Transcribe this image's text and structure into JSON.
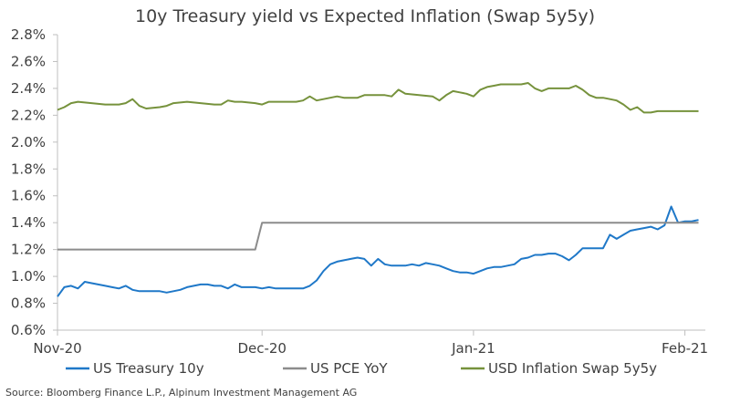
{
  "chart_data": {
    "type": "line",
    "title": "10y Treasury yield vs Expected Inflation (Swap 5y5y)",
    "source": "Source: Bloomberg Finance L.P., Alpinum Investment Management AG",
    "xlabel": "",
    "ylabel": "",
    "ylim": [
      0.6,
      2.8
    ],
    "yticks": [
      "0.6%",
      "0.8%",
      "1.0%",
      "1.2%",
      "1.4%",
      "1.6%",
      "1.8%",
      "2.0%",
      "2.2%",
      "2.4%",
      "2.6%",
      "2.8%"
    ],
    "xlim": [
      "2020-11-01",
      "2021-02-04"
    ],
    "xticks": [
      {
        "label": "Nov-20",
        "date": "2020-11-01"
      },
      {
        "label": "Dec-20",
        "date": "2020-12-01"
      },
      {
        "label": "Jan-21",
        "date": "2021-01-01"
      },
      {
        "label": "Feb-21",
        "date": "2021-02-01"
      }
    ],
    "grid": false,
    "legend_position": "bottom",
    "series": [
      {
        "name": "US Treasury 10y",
        "color": "#1f78c8",
        "points": [
          [
            "2020-11-01",
            0.85
          ],
          [
            "2020-11-02",
            0.92
          ],
          [
            "2020-11-03",
            0.93
          ],
          [
            "2020-11-04",
            0.91
          ],
          [
            "2020-11-05",
            0.96
          ],
          [
            "2020-11-06",
            0.95
          ],
          [
            "2020-11-08",
            0.93
          ],
          [
            "2020-11-09",
            0.92
          ],
          [
            "2020-11-10",
            0.91
          ],
          [
            "2020-11-11",
            0.93
          ],
          [
            "2020-11-12",
            0.9
          ],
          [
            "2020-11-13",
            0.89
          ],
          [
            "2020-11-15",
            0.89
          ],
          [
            "2020-11-16",
            0.89
          ],
          [
            "2020-11-17",
            0.88
          ],
          [
            "2020-11-18",
            0.89
          ],
          [
            "2020-11-19",
            0.9
          ],
          [
            "2020-11-20",
            0.92
          ],
          [
            "2020-11-22",
            0.94
          ],
          [
            "2020-11-23",
            0.94
          ],
          [
            "2020-11-24",
            0.93
          ],
          [
            "2020-11-25",
            0.93
          ],
          [
            "2020-11-26",
            0.91
          ],
          [
            "2020-11-27",
            0.94
          ],
          [
            "2020-11-28",
            0.92
          ],
          [
            "2020-11-29",
            0.92
          ],
          [
            "2020-11-30",
            0.92
          ],
          [
            "2020-12-01",
            0.91
          ],
          [
            "2020-12-02",
            0.92
          ],
          [
            "2020-12-03",
            0.91
          ],
          [
            "2020-12-04",
            0.91
          ],
          [
            "2020-12-05",
            0.91
          ],
          [
            "2020-12-06",
            0.91
          ],
          [
            "2020-12-07",
            0.91
          ],
          [
            "2020-12-08",
            0.93
          ],
          [
            "2020-12-09",
            0.97
          ],
          [
            "2020-12-10",
            1.04
          ],
          [
            "2020-12-11",
            1.09
          ],
          [
            "2020-12-12",
            1.11
          ],
          [
            "2020-12-13",
            1.12
          ],
          [
            "2020-12-14",
            1.13
          ],
          [
            "2020-12-15",
            1.14
          ],
          [
            "2020-12-16",
            1.13
          ],
          [
            "2020-12-17",
            1.08
          ],
          [
            "2020-12-18",
            1.13
          ],
          [
            "2020-12-19",
            1.09
          ],
          [
            "2020-12-20",
            1.08
          ],
          [
            "2020-12-21",
            1.08
          ],
          [
            "2020-12-22",
            1.08
          ],
          [
            "2020-12-23",
            1.09
          ],
          [
            "2020-12-24",
            1.08
          ],
          [
            "2020-12-25",
            1.1
          ],
          [
            "2020-12-26",
            1.09
          ],
          [
            "2020-12-27",
            1.08
          ],
          [
            "2020-12-28",
            1.06
          ],
          [
            "2020-12-29",
            1.04
          ],
          [
            "2020-12-30",
            1.03
          ],
          [
            "2020-12-31",
            1.03
          ],
          [
            "2021-01-01",
            1.02
          ],
          [
            "2021-01-02",
            1.04
          ],
          [
            "2021-01-03",
            1.06
          ],
          [
            "2021-01-04",
            1.07
          ],
          [
            "2021-01-05",
            1.07
          ],
          [
            "2021-01-06",
            1.08
          ],
          [
            "2021-01-07",
            1.09
          ],
          [
            "2021-01-08",
            1.13
          ],
          [
            "2021-01-09",
            1.14
          ],
          [
            "2021-01-10",
            1.16
          ],
          [
            "2021-01-11",
            1.16
          ],
          [
            "2021-01-12",
            1.17
          ],
          [
            "2021-01-13",
            1.17
          ],
          [
            "2021-01-14",
            1.15
          ],
          [
            "2021-01-15",
            1.12
          ],
          [
            "2021-01-16",
            1.16
          ],
          [
            "2021-01-17",
            1.21
          ],
          [
            "2021-01-18",
            1.21
          ],
          [
            "2021-01-19",
            1.21
          ],
          [
            "2021-01-20",
            1.21
          ],
          [
            "2021-01-21",
            1.31
          ],
          [
            "2021-01-22",
            1.28
          ],
          [
            "2021-01-23",
            1.31
          ],
          [
            "2021-01-24",
            1.34
          ],
          [
            "2021-01-25",
            1.35
          ],
          [
            "2021-01-26",
            1.36
          ],
          [
            "2021-01-27",
            1.37
          ],
          [
            "2021-01-28",
            1.35
          ],
          [
            "2021-01-29",
            1.38
          ],
          [
            "2021-01-30",
            1.52
          ],
          [
            "2021-01-31",
            1.4
          ],
          [
            "2021-02-01",
            1.41
          ],
          [
            "2021-02-02",
            1.41
          ],
          [
            "2021-02-03",
            1.42
          ]
        ]
      },
      {
        "name": "US PCE YoY",
        "color": "#8c8c8c",
        "points": [
          [
            "2020-11-01",
            1.2
          ],
          [
            "2020-11-30",
            1.2
          ],
          [
            "2020-12-01",
            1.4
          ],
          [
            "2021-02-03",
            1.4
          ]
        ]
      },
      {
        "name": "USD Inflation Swap 5y5y",
        "color": "#76923c",
        "points": [
          [
            "2020-11-01",
            2.24
          ],
          [
            "2020-11-02",
            2.26
          ],
          [
            "2020-11-03",
            2.29
          ],
          [
            "2020-11-04",
            2.3
          ],
          [
            "2020-11-06",
            2.29
          ],
          [
            "2020-11-08",
            2.28
          ],
          [
            "2020-11-10",
            2.28
          ],
          [
            "2020-11-11",
            2.29
          ],
          [
            "2020-11-12",
            2.32
          ],
          [
            "2020-11-13",
            2.27
          ],
          [
            "2020-11-14",
            2.25
          ],
          [
            "2020-11-16",
            2.26
          ],
          [
            "2020-11-17",
            2.27
          ],
          [
            "2020-11-18",
            2.29
          ],
          [
            "2020-11-20",
            2.3
          ],
          [
            "2020-11-22",
            2.29
          ],
          [
            "2020-11-24",
            2.28
          ],
          [
            "2020-11-25",
            2.28
          ],
          [
            "2020-11-26",
            2.31
          ],
          [
            "2020-11-27",
            2.3
          ],
          [
            "2020-11-28",
            2.3
          ],
          [
            "2020-11-30",
            2.29
          ],
          [
            "2020-12-01",
            2.28
          ],
          [
            "2020-12-02",
            2.3
          ],
          [
            "2020-12-04",
            2.3
          ],
          [
            "2020-12-06",
            2.3
          ],
          [
            "2020-12-07",
            2.31
          ],
          [
            "2020-12-08",
            2.34
          ],
          [
            "2020-12-09",
            2.31
          ],
          [
            "2020-12-10",
            2.32
          ],
          [
            "2020-12-11",
            2.33
          ],
          [
            "2020-12-12",
            2.34
          ],
          [
            "2020-12-13",
            2.33
          ],
          [
            "2020-12-14",
            2.33
          ],
          [
            "2020-12-15",
            2.33
          ],
          [
            "2020-12-16",
            2.35
          ],
          [
            "2020-12-18",
            2.35
          ],
          [
            "2020-12-19",
            2.35
          ],
          [
            "2020-12-20",
            2.34
          ],
          [
            "2020-12-21",
            2.39
          ],
          [
            "2020-12-22",
            2.36
          ],
          [
            "2020-12-24",
            2.35
          ],
          [
            "2020-12-26",
            2.34
          ],
          [
            "2020-12-27",
            2.31
          ],
          [
            "2020-12-28",
            2.35
          ],
          [
            "2020-12-29",
            2.38
          ],
          [
            "2020-12-30",
            2.37
          ],
          [
            "2020-12-31",
            2.36
          ],
          [
            "2021-01-01",
            2.34
          ],
          [
            "2021-01-02",
            2.39
          ],
          [
            "2021-01-03",
            2.41
          ],
          [
            "2021-01-04",
            2.42
          ],
          [
            "2021-01-05",
            2.43
          ],
          [
            "2021-01-06",
            2.43
          ],
          [
            "2021-01-07",
            2.43
          ],
          [
            "2021-01-08",
            2.43
          ],
          [
            "2021-01-09",
            2.44
          ],
          [
            "2021-01-10",
            2.4
          ],
          [
            "2021-01-11",
            2.38
          ],
          [
            "2021-01-12",
            2.4
          ],
          [
            "2021-01-13",
            2.4
          ],
          [
            "2021-01-14",
            2.4
          ],
          [
            "2021-01-15",
            2.4
          ],
          [
            "2021-01-16",
            2.42
          ],
          [
            "2021-01-17",
            2.39
          ],
          [
            "2021-01-18",
            2.35
          ],
          [
            "2021-01-19",
            2.33
          ],
          [
            "2021-01-20",
            2.33
          ],
          [
            "2021-01-21",
            2.32
          ],
          [
            "2021-01-22",
            2.31
          ],
          [
            "2021-01-23",
            2.28
          ],
          [
            "2021-01-24",
            2.24
          ],
          [
            "2021-01-25",
            2.26
          ],
          [
            "2021-01-26",
            2.22
          ],
          [
            "2021-01-27",
            2.22
          ],
          [
            "2021-01-28",
            2.23
          ],
          [
            "2021-02-03",
            2.23
          ]
        ]
      }
    ]
  }
}
